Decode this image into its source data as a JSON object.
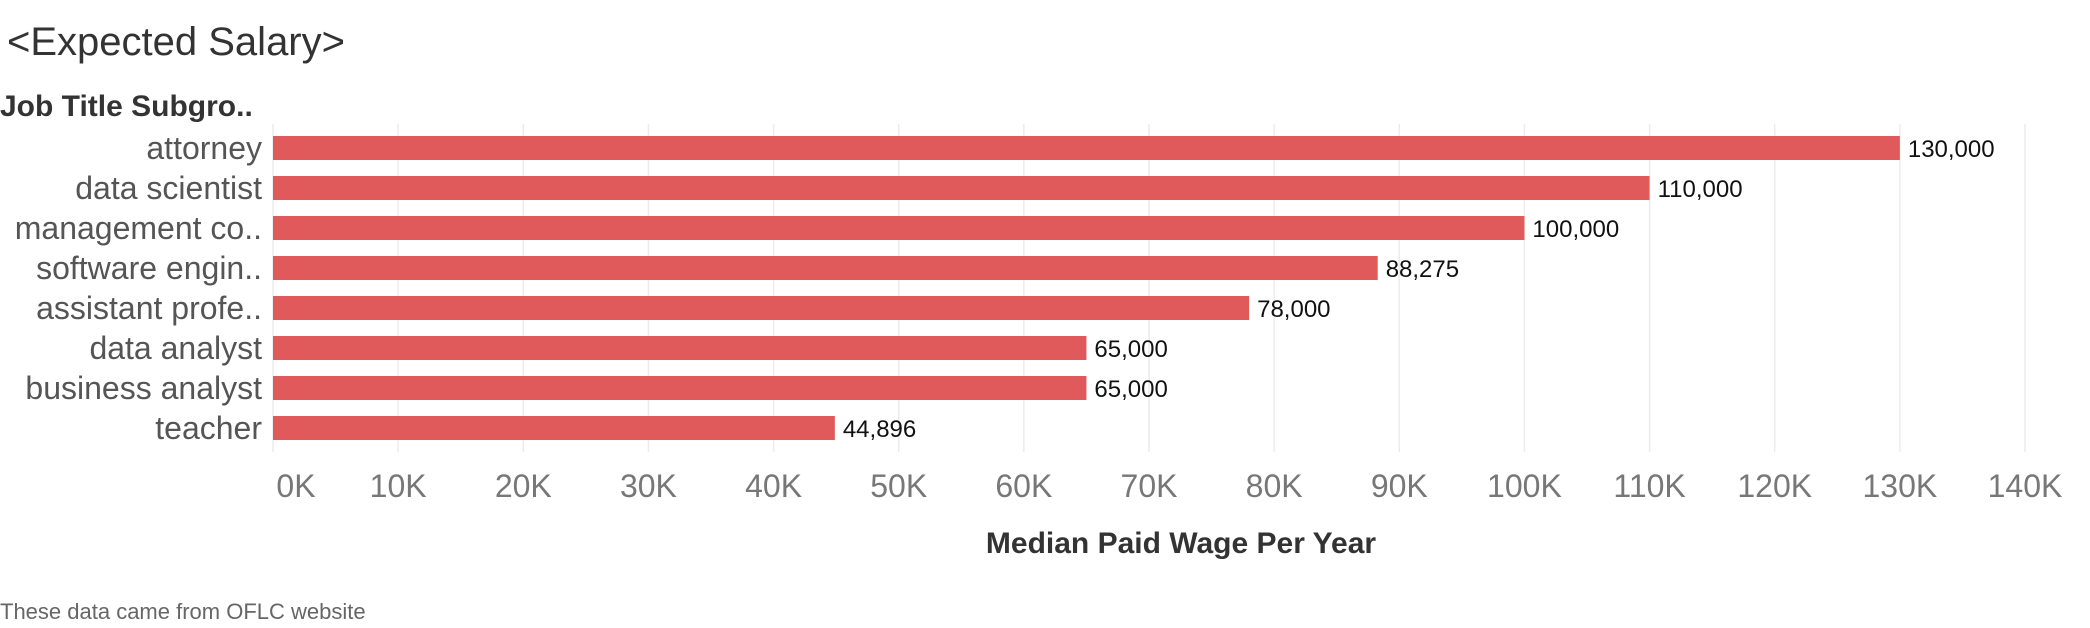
{
  "title": "<Expected Salary>",
  "footnote": "These data came from OFLC website",
  "chart_data": {
    "type": "bar",
    "orientation": "horizontal",
    "row_header": "Job Title Subgro..",
    "categories": [
      "attorney",
      "data scientist",
      "management co..",
      "software engin..",
      "assistant profe..",
      "data analyst",
      "business analyst",
      "teacher"
    ],
    "values": [
      130000,
      110000,
      100000,
      88275,
      78000,
      65000,
      65000,
      44896
    ],
    "value_labels": [
      "130,000",
      "110,000",
      "100,000",
      "88,275",
      "78,000",
      "65,000",
      "65,000",
      "44,896"
    ],
    "xlabel": "Median Paid Wage Per Year",
    "xlim": [
      0,
      140000
    ],
    "x_ticks": [
      0,
      10000,
      20000,
      30000,
      40000,
      50000,
      60000,
      70000,
      80000,
      90000,
      100000,
      110000,
      120000,
      130000,
      140000
    ],
    "x_tick_labels": [
      "0K",
      "10K",
      "20K",
      "30K",
      "40K",
      "50K",
      "60K",
      "70K",
      "80K",
      "90K",
      "100K",
      "110K",
      "120K",
      "130K",
      "140K"
    ],
    "bar_color": "#e05a5c",
    "grid": true
  }
}
